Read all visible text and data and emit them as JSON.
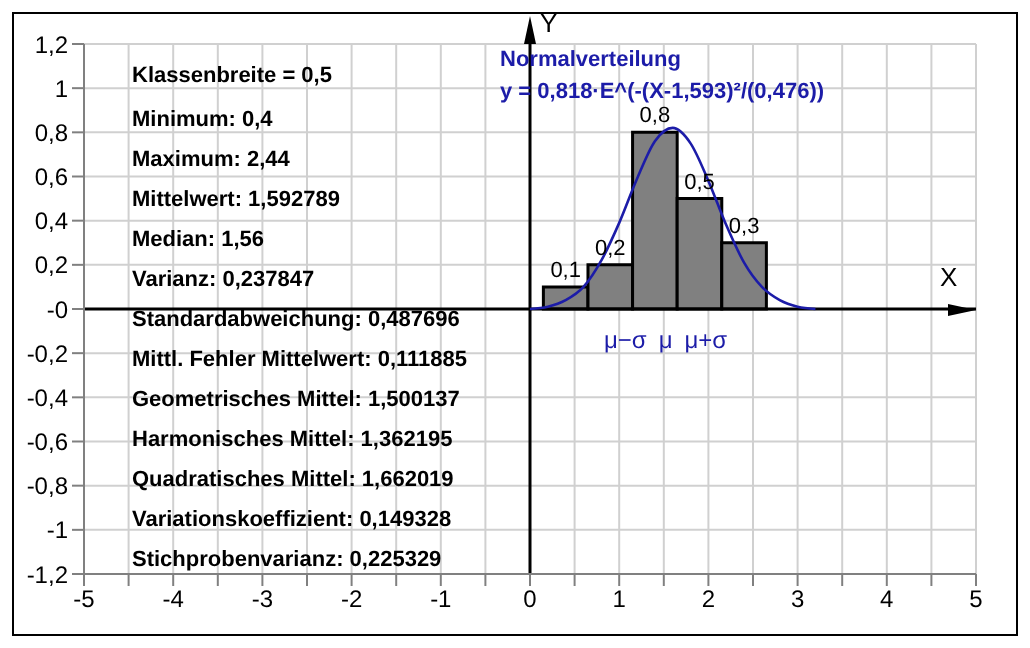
{
  "chart_data": {
    "type": "histogram",
    "title": "Normalverteilung",
    "subtitle": "y = 0,818·E^(-(X-1,593)²/(0,476))",
    "xlabel": "X",
    "ylabel": "Y",
    "series": [
      {
        "bins": [
          0.15,
          0.65,
          1.15,
          1.65,
          2.15,
          2.65
        ],
        "values": [
          0.1,
          0.2,
          0.8,
          0.5,
          0.3
        ],
        "value_labels": [
          "0,1",
          "0,2",
          "0,8",
          "0,5",
          "0,3"
        ],
        "color": "#808080"
      },
      {
        "type": "line",
        "x": [
          0,
          0.2,
          0.4,
          0.6,
          0.8,
          1.0,
          1.2,
          1.4,
          1.6,
          1.8,
          2.0,
          2.2,
          2.4,
          2.6,
          2.8,
          3.0,
          3.2
        ],
        "values": [
          0.0,
          0.01,
          0.04,
          0.1,
          0.22,
          0.39,
          0.59,
          0.76,
          0.82,
          0.75,
          0.58,
          0.38,
          0.21,
          0.1,
          0.04,
          0.01,
          0.0
        ],
        "color": "#1c1ca8"
      }
    ],
    "annotations": [
      "Klassenbreite = 0,5",
      "Minimum: 0,4",
      "Maximum: 2,44",
      "Mittelwert: 1,592789",
      "Median: 1,56",
      "Varianz: 0,237847",
      "Standardabweichung: 0,487696",
      "Mittl. Fehler Mittelwert: 0,111885",
      "Geometrisches Mittel: 1,500137",
      "Harmonisches Mittel: 1,362195",
      "Quadratisches Mittel: 1,662019",
      "Variationskoeffizient: 0,149328",
      "Stichprobenvarianz: 0,225329",
      "μ−σ",
      "μ",
      "μ+σ"
    ],
    "xlim": [
      -5,
      5
    ],
    "xticks": [
      -5,
      {
        "value": -4.5,
        "label": null
      },
      -4,
      {
        "value": -3.5,
        "label": null
      },
      -3,
      {
        "value": -2.5,
        "label": null
      },
      -2,
      {
        "value": -1.5,
        "label": null
      },
      -1,
      {
        "value": -0.5,
        "label": null
      },
      0,
      {
        "value": 0.5,
        "label": null
      },
      1,
      {
        "value": 1.5,
        "label": null
      },
      2,
      {
        "value": 2.5,
        "label": null
      },
      3,
      {
        "value": 3.5,
        "label": null
      },
      4,
      {
        "value": 4.5,
        "label": null
      },
      5
    ],
    "ylim": [
      -1.2,
      1.2
    ],
    "yticks": [
      {
        "value": -1.2,
        "label": "-1,2"
      },
      -1,
      {
        "value": -0.8,
        "label": "-0,8"
      },
      {
        "value": -0.6,
        "label": "-0,6"
      },
      {
        "value": -0.4,
        "label": "-0,4"
      },
      {
        "value": -0.2,
        "label": "-0,2"
      },
      {
        "value": 0,
        "label": "-0"
      },
      {
        "value": 0.2,
        "label": "0,2"
      },
      {
        "value": 0.4,
        "label": "0,4"
      },
      {
        "value": 0.6,
        "label": "0,6"
      },
      {
        "value": 0.8,
        "label": "0,8"
      },
      1,
      {
        "value": 1.2,
        "label": "1,2"
      }
    ],
    "grid": true,
    "marker": "none",
    "line_style": "solid"
  }
}
